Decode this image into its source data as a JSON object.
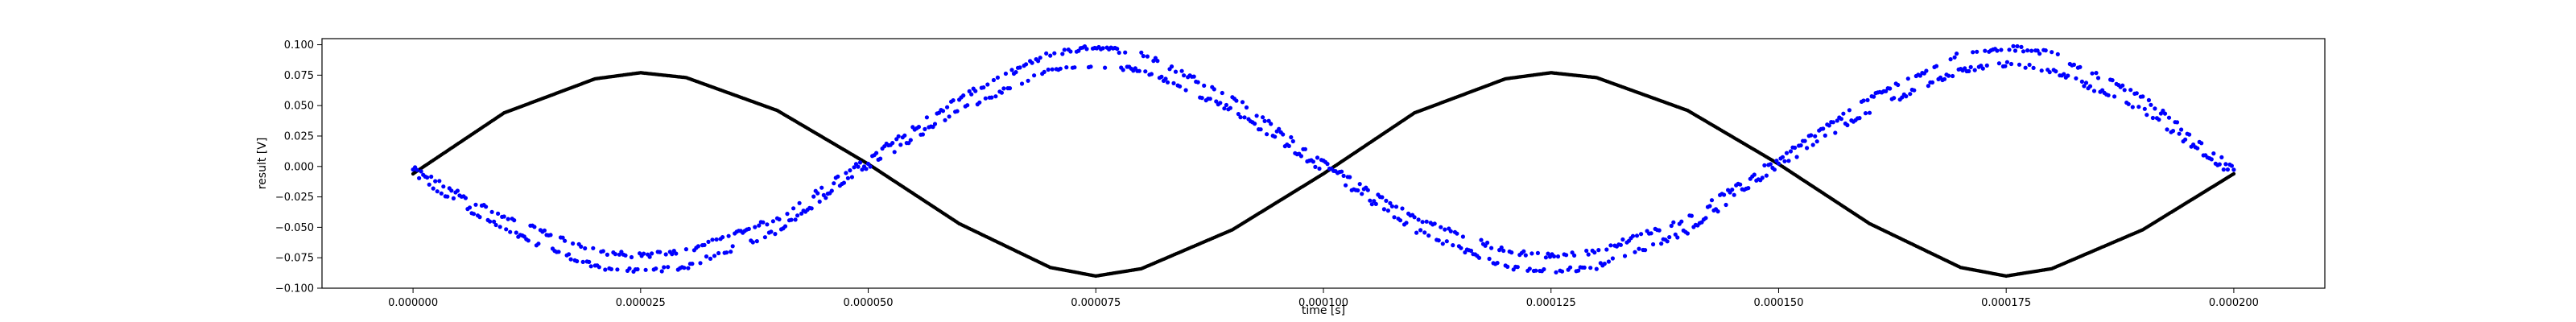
{
  "chart_data": {
    "type": "scatter",
    "title": "",
    "xlabel": "time [s]",
    "ylabel": "result [V]",
    "xlim": [
      -1e-05,
      0.00021
    ],
    "ylim": [
      -0.1,
      0.105
    ],
    "xticks": [
      0.0,
      2.5e-05,
      5e-05,
      7.5e-05,
      0.0001,
      0.000125,
      0.00015,
      0.000175,
      0.0002
    ],
    "xtick_labels": [
      "0.000000",
      "0.000025",
      "0.000050",
      "0.000075",
      "0.000100",
      "0.000125",
      "0.000150",
      "0.000175",
      "0.000200"
    ],
    "yticks": [
      -0.1,
      -0.075,
      -0.05,
      -0.025,
      0.0,
      0.025,
      0.05,
      0.075,
      0.1
    ],
    "ytick_labels": [
      "−0.100",
      "−0.075",
      "−0.050",
      "−0.025",
      "0.000",
      "0.025",
      "0.050",
      "0.075",
      "0.100"
    ],
    "grid": false,
    "series": [
      {
        "color": "#000000",
        "marker": "dense-dots",
        "x": [
          0.0,
          1e-05,
          2e-05,
          2.5e-05,
          3e-05,
          4e-05,
          5e-05,
          6e-05,
          7e-05,
          7.5e-05,
          8e-05,
          9e-05,
          0.0001,
          0.00011,
          0.00012,
          0.000125,
          0.00013,
          0.00014,
          0.00015,
          0.00016,
          0.00017,
          0.000175,
          0.00018,
          0.00019,
          0.0002
        ],
        "y": [
          -0.006,
          0.044,
          0.072,
          0.077,
          0.073,
          0.046,
          0.002,
          -0.047,
          -0.083,
          -0.09,
          -0.084,
          -0.052,
          -0.006,
          0.044,
          0.072,
          0.077,
          0.073,
          0.046,
          0.002,
          -0.047,
          -0.083,
          -0.09,
          -0.084,
          -0.052,
          -0.006
        ]
      },
      {
        "color": "#0000ff",
        "marker": "dot",
        "x": [
          0.0,
          1e-05,
          2e-05,
          2.5e-05,
          3e-05,
          4e-05,
          5e-05,
          6e-05,
          7e-05,
          7.5e-05,
          8e-05,
          9e-05,
          0.0001,
          0.00011,
          0.00012,
          0.000125,
          0.00013,
          0.00014,
          0.00015,
          0.00016,
          0.00017,
          0.000175,
          0.00018,
          0.00019,
          0.0002
        ],
        "y": [
          -0.005,
          -0.047,
          -0.076,
          -0.08,
          -0.076,
          -0.048,
          0.004,
          0.051,
          0.086,
          0.091,
          0.086,
          0.052,
          0.0,
          -0.047,
          -0.076,
          -0.08,
          -0.076,
          -0.048,
          0.004,
          0.051,
          0.086,
          0.091,
          0.086,
          0.052,
          -0.005
        ]
      }
    ]
  }
}
